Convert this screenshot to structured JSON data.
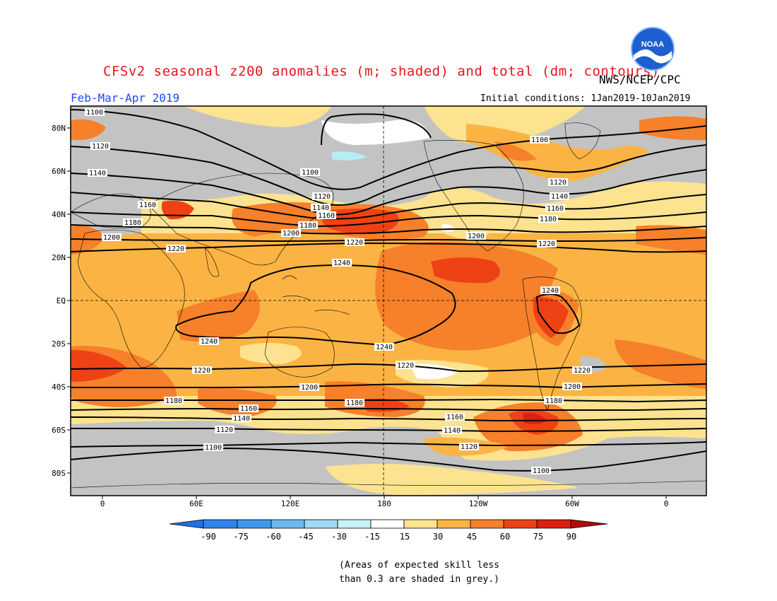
{
  "header": {
    "title": "CFSv2 seasonal z200 anomalies (m; shaded) and total (dm; contours)",
    "agency": "NWS/NCEP/CPC",
    "period": "Feb-Mar-Apr 2019",
    "initial_conditions": "Initial conditions: 1Jan2019-10Jan2019"
  },
  "logo": {
    "icon": "noaa-logo-icon",
    "text": "NOAA"
  },
  "map": {
    "lat_ticks": [
      "80N",
      "60N",
      "40N",
      "20N",
      "EQ",
      "20S",
      "40S",
      "60S",
      "80S"
    ],
    "lon_ticks": [
      "0",
      "60E",
      "120E",
      "180",
      "120W",
      "60W",
      "0"
    ],
    "contour_labels": [
      "1100",
      "1120",
      "1140",
      "1160",
      "1180",
      "1200",
      "1220",
      "1240"
    ],
    "colors": {
      "ocean_land_grey": "#c3c3c3",
      "pale_yellow": "#fde38f",
      "light_orange": "#fbb444",
      "orange": "#f7802a",
      "red_orange": "#ee4215",
      "light_cyan": "#b3eef3",
      "white": "#ffffff"
    }
  },
  "colorbar": {
    "labels": [
      "-90",
      "-75",
      "-60",
      "-45",
      "-30",
      "-15",
      "15",
      "30",
      "45",
      "60",
      "75",
      "90"
    ],
    "colors": [
      "#2171e6",
      "#2d85ea",
      "#3f98ee",
      "#6cb9f2",
      "#9fd9f5",
      "#c9f0f5",
      "#ffffff",
      "#fde38f",
      "#fbb444",
      "#f7802a",
      "#ee4215",
      "#dd1f0f",
      "#b00b0b"
    ]
  },
  "note": {
    "line1": "(Areas of expected skill less",
    "line2": "than 0.3 are shaded in grey.)"
  }
}
